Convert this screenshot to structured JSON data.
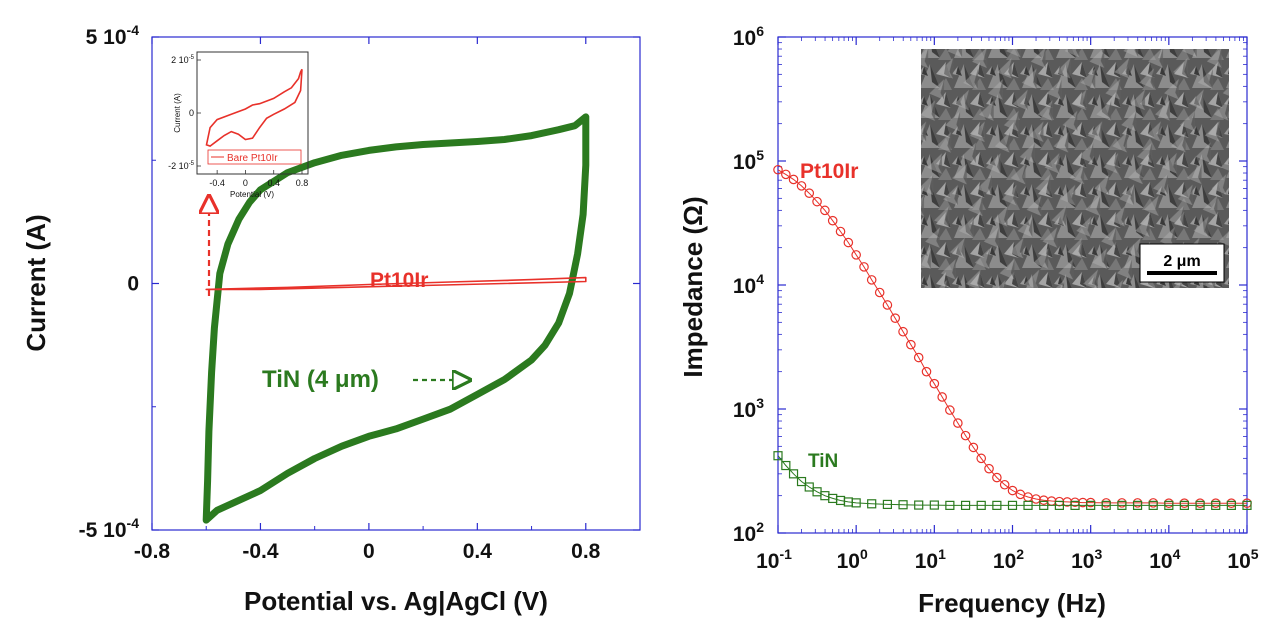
{
  "colors": {
    "pt10ir": "#e8312a",
    "tin": "#2b7a1f",
    "axes": "#2a2ad0",
    "text": "#111111"
  },
  "chart_data": [
    {
      "type": "line",
      "panel": "left",
      "xlabel": "Potential vs. Ag|AgCl (V)",
      "ylabel": "Current (A)",
      "xlim": [
        -0.8,
        1.0
      ],
      "ylim": [
        -0.0005,
        0.0005
      ],
      "x_ticks": [
        "-0.8",
        "-0.4",
        "0",
        "0.4",
        "0.8"
      ],
      "x_tick_values": [
        -0.8,
        -0.4,
        0,
        0.4,
        0.8
      ],
      "y_ticks": [
        {
          "value": -0.0005,
          "mantissa": "-5 10",
          "exp": "-4"
        },
        {
          "value": 0,
          "mantissa": "0",
          "exp": ""
        },
        {
          "value": 0.0005,
          "mantissa": "5 10",
          "exp": "-4"
        }
      ],
      "annotations": {
        "pt10ir": "Pt10Ir",
        "tin": "TiN (4 μm)"
      },
      "series": [
        {
          "name": "TiN (4 μm)",
          "color": "#2b7a1f",
          "points": [
            [
              -0.6,
              -0.00048
            ],
            [
              -0.595,
              -0.0004
            ],
            [
              -0.59,
              -0.0003
            ],
            [
              -0.58,
              -0.00018
            ],
            [
              -0.57,
              -9e-05
            ],
            [
              -0.55,
              2e-05
            ],
            [
              -0.52,
              8e-05
            ],
            [
              -0.48,
              0.00013
            ],
            [
              -0.44,
              0.000165
            ],
            [
              -0.4,
              0.00019
            ],
            [
              -0.3,
              0.000225
            ],
            [
              -0.2,
              0.000245
            ],
            [
              -0.1,
              0.00026
            ],
            [
              0.0,
              0.00027
            ],
            [
              0.1,
              0.000277
            ],
            [
              0.2,
              0.000282
            ],
            [
              0.3,
              0.000285
            ],
            [
              0.4,
              0.000288
            ],
            [
              0.5,
              0.000292
            ],
            [
              0.6,
              0.0003
            ],
            [
              0.7,
              0.000312
            ],
            [
              0.76,
              0.00032
            ],
            [
              0.8,
              0.000338
            ],
            [
              0.8,
              0.00024
            ],
            [
              0.79,
              0.00014
            ],
            [
              0.77,
              6e-05
            ],
            [
              0.74,
              -2e-05
            ],
            [
              0.7,
              -8e-05
            ],
            [
              0.65,
              -0.000125
            ],
            [
              0.6,
              -0.000155
            ],
            [
              0.5,
              -0.000195
            ],
            [
              0.4,
              -0.000225
            ],
            [
              0.3,
              -0.000255
            ],
            [
              0.2,
              -0.000275
            ],
            [
              0.1,
              -0.000295
            ],
            [
              0.0,
              -0.00031
            ],
            [
              -0.1,
              -0.00033
            ],
            [
              -0.2,
              -0.000355
            ],
            [
              -0.3,
              -0.000385
            ],
            [
              -0.4,
              -0.00042
            ],
            [
              -0.5,
              -0.000445
            ],
            [
              -0.56,
              -0.00046
            ],
            [
              -0.6,
              -0.00048
            ]
          ]
        },
        {
          "name": "Pt10Ir",
          "color": "#e8312a",
          "points": [
            [
              -0.6,
              -1.2e-05
            ],
            [
              -0.3,
              -8e-06
            ],
            [
              0.0,
              -2e-06
            ],
            [
              0.3,
              3e-06
            ],
            [
              0.6,
              8e-06
            ],
            [
              0.8,
              1.2e-05
            ],
            [
              0.8,
              4e-06
            ],
            [
              0.5,
              0.0
            ],
            [
              0.2,
              -4e-06
            ],
            [
              -0.1,
              -8e-06
            ],
            [
              -0.4,
              -1.2e-05
            ],
            [
              -0.6,
              -1.2e-05
            ]
          ]
        }
      ],
      "inset": {
        "xlabel": "Potential (V)",
        "ylabel": "Current (A)",
        "xlim": [
          -0.6,
          0.8
        ],
        "ylim": [
          -2e-05,
          2e-05
        ],
        "x_ticks": [
          "-0.4",
          "0",
          "0.4",
          "0.8"
        ],
        "x_tick_values": [
          -0.4,
          0,
          0.4,
          0.8
        ],
        "y_ticks": [
          {
            "value": 2e-05,
            "mantissa": "2 10",
            "exp": "-5"
          },
          {
            "value": 0,
            "mantissa": "0",
            "exp": ""
          },
          {
            "value": -2e-05,
            "mantissa": "-2 10",
            "exp": "-5"
          }
        ],
        "legend": "Bare Pt10Ir",
        "points": [
          [
            -0.55,
            -1.2e-05
          ],
          [
            -0.5,
            -5.5e-06
          ],
          [
            -0.4,
            -2.5e-06
          ],
          [
            -0.2,
            -5e-07
          ],
          [
            0.0,
            1.5e-06
          ],
          [
            0.1,
            3e-06
          ],
          [
            0.2,
            3.5e-06
          ],
          [
            0.4,
            5.5e-06
          ],
          [
            0.55,
            8e-06
          ],
          [
            0.65,
            9.5e-06
          ],
          [
            0.75,
            1.3e-05
          ],
          [
            0.78,
            1.55e-05
          ],
          [
            0.8,
            1.65e-05
          ],
          [
            0.78,
            8.5e-06
          ],
          [
            0.7,
            4e-06
          ],
          [
            0.55,
            1.5e-06
          ],
          [
            0.4,
            -5e-07
          ],
          [
            0.3,
            -2e-06
          ],
          [
            0.2,
            -5.5e-06
          ],
          [
            0.1,
            -9.5e-06
          ],
          [
            0.0,
            -1e-05
          ],
          [
            -0.1,
            -8e-06
          ],
          [
            -0.2,
            -7e-06
          ],
          [
            -0.3,
            -8.5e-06
          ],
          [
            -0.4,
            -1.05e-05
          ],
          [
            -0.5,
            -1.25e-05
          ],
          [
            -0.55,
            -1.2e-05
          ]
        ]
      }
    },
    {
      "type": "scatter",
      "panel": "right",
      "xlabel": "Frequency (Hz)",
      "ylabel": "Impedance (Ω)",
      "log_x": true,
      "log_y": true,
      "xlim": [
        0.1,
        100000
      ],
      "ylim": [
        100,
        1000000
      ],
      "x_ticks": [
        {
          "base": "10",
          "exp": "-1",
          "value": 0.1
        },
        {
          "base": "10",
          "exp": "0",
          "value": 1
        },
        {
          "base": "10",
          "exp": "1",
          "value": 10
        },
        {
          "base": "10",
          "exp": "2",
          "value": 100
        },
        {
          "base": "10",
          "exp": "3",
          "value": 1000
        },
        {
          "base": "10",
          "exp": "4",
          "value": 10000
        },
        {
          "base": "10",
          "exp": "5",
          "value": 100000
        }
      ],
      "y_ticks": [
        {
          "base": "10",
          "exp": "2",
          "value": 100
        },
        {
          "base": "10",
          "exp": "3",
          "value": 1000
        },
        {
          "base": "10",
          "exp": "4",
          "value": 10000
        },
        {
          "base": "10",
          "exp": "5",
          "value": 100000
        },
        {
          "base": "10",
          "exp": "6",
          "value": 1000000
        }
      ],
      "annotations": {
        "pt10ir": "Pt10Ir",
        "tin": "TiN"
      },
      "inset_image": {
        "scale_bar": "2 μm"
      },
      "series": [
        {
          "name": "Pt10Ir",
          "color": "#e8312a",
          "marker": "circle",
          "x": [
            0.1,
            0.126,
            0.158,
            0.2,
            0.251,
            0.316,
            0.398,
            0.501,
            0.631,
            0.794,
            1,
            1.26,
            1.58,
            2,
            2.51,
            3.16,
            3.98,
            5.01,
            6.31,
            7.94,
            10,
            12.6,
            15.8,
            20,
            25.1,
            31.6,
            39.8,
            50.1,
            63.1,
            79.4,
            100,
            126,
            158,
            200,
            251,
            316,
            398,
            501,
            631,
            794,
            1000,
            1580,
            2510,
            3980,
            6310,
            10000,
            15800,
            25100,
            39800,
            63100,
            100000
          ],
          "y": [
            85000,
            78000,
            71000,
            63000,
            55000,
            47000,
            40000,
            33000,
            27000,
            22000,
            17500,
            14000,
            11000,
            8700,
            6900,
            5400,
            4200,
            3300,
            2600,
            2000,
            1600,
            1250,
            980,
            770,
            610,
            490,
            400,
            330,
            280,
            245,
            220,
            205,
            195,
            188,
            184,
            181,
            179,
            178,
            177,
            176,
            176,
            175,
            175,
            175,
            175,
            174,
            174,
            174,
            174,
            174,
            174
          ]
        },
        {
          "name": "TiN",
          "color": "#2b7a1f",
          "marker": "square",
          "x": [
            0.1,
            0.126,
            0.158,
            0.2,
            0.251,
            0.316,
            0.398,
            0.501,
            0.631,
            0.794,
            1,
            1.58,
            2.51,
            3.98,
            6.31,
            10,
            15.8,
            25.1,
            39.8,
            63.1,
            100,
            158,
            251,
            398,
            631,
            1000,
            1580,
            2510,
            3980,
            6310,
            10000,
            15800,
            25100,
            39800,
            63100,
            100000
          ],
          "y": [
            420,
            350,
            300,
            260,
            235,
            215,
            200,
            190,
            183,
            178,
            175,
            172,
            170,
            169,
            168,
            168,
            167,
            167,
            167,
            167,
            167,
            167,
            167,
            167,
            167,
            167,
            167,
            167,
            167,
            167,
            167,
            167,
            167,
            167,
            167,
            167
          ]
        }
      ]
    }
  ]
}
